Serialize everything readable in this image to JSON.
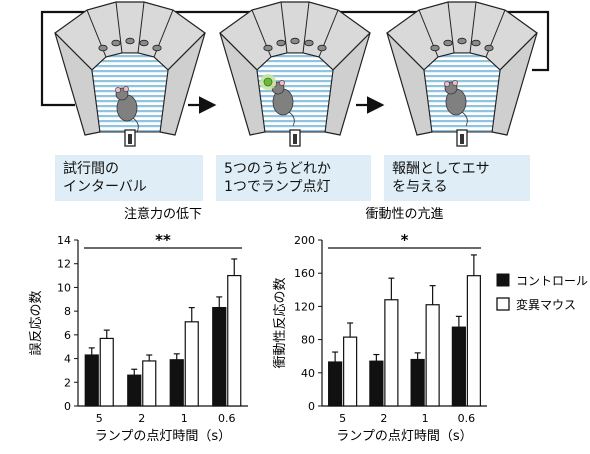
{
  "steps": [
    {
      "line1": "試行間の",
      "line2": "インターバル"
    },
    {
      "line1": "5つのうちどれか",
      "line2": "1つでランプ点灯"
    },
    {
      "line1": "報酬としてエサ",
      "line2": "を与える"
    }
  ],
  "legend": {
    "control": "コントロール",
    "mutant": "変異マウス"
  },
  "colors": {
    "control": "#111111",
    "mutant": "#ffffff",
    "panel_blue": "#dfeef6",
    "arena_stripe": "#8fc3e0",
    "lamp": "#6ab83a"
  },
  "chart_data": [
    {
      "type": "bar",
      "title": "注意力の低下",
      "significance": "**",
      "categories": [
        "5",
        "2",
        "1",
        "0.6"
      ],
      "xlabel": "ランプの点灯時間（s）",
      "ylabel": "誤反応の数",
      "ylim": [
        0,
        14
      ],
      "yticks": [
        "0",
        "2",
        "4",
        "6",
        "8",
        "10",
        "12",
        "14"
      ],
      "series": [
        {
          "name": "コントロール",
          "values": [
            4.3,
            2.6,
            3.9,
            8.3
          ],
          "errors": [
            0.6,
            0.5,
            0.5,
            0.9
          ]
        },
        {
          "name": "変異マウス",
          "values": [
            5.7,
            3.8,
            7.1,
            11.0
          ],
          "errors": [
            0.7,
            0.5,
            1.2,
            1.4
          ]
        }
      ]
    },
    {
      "type": "bar",
      "title": "衝動性の亢進",
      "significance": "*",
      "categories": [
        "5",
        "2",
        "1",
        "0.6"
      ],
      "xlabel": "ランプの点灯時間（s）",
      "ylabel": "衝動性反応の数",
      "ylim": [
        0,
        200
      ],
      "yticks": [
        "0",
        "40",
        "80",
        "120",
        "160",
        "200"
      ],
      "series": [
        {
          "name": "コントロール",
          "values": [
            53,
            54,
            56,
            95
          ],
          "errors": [
            12,
            8,
            8,
            13
          ]
        },
        {
          "name": "変異マウス",
          "values": [
            83,
            128,
            122,
            157
          ],
          "errors": [
            17,
            26,
            23,
            25
          ]
        }
      ]
    }
  ]
}
